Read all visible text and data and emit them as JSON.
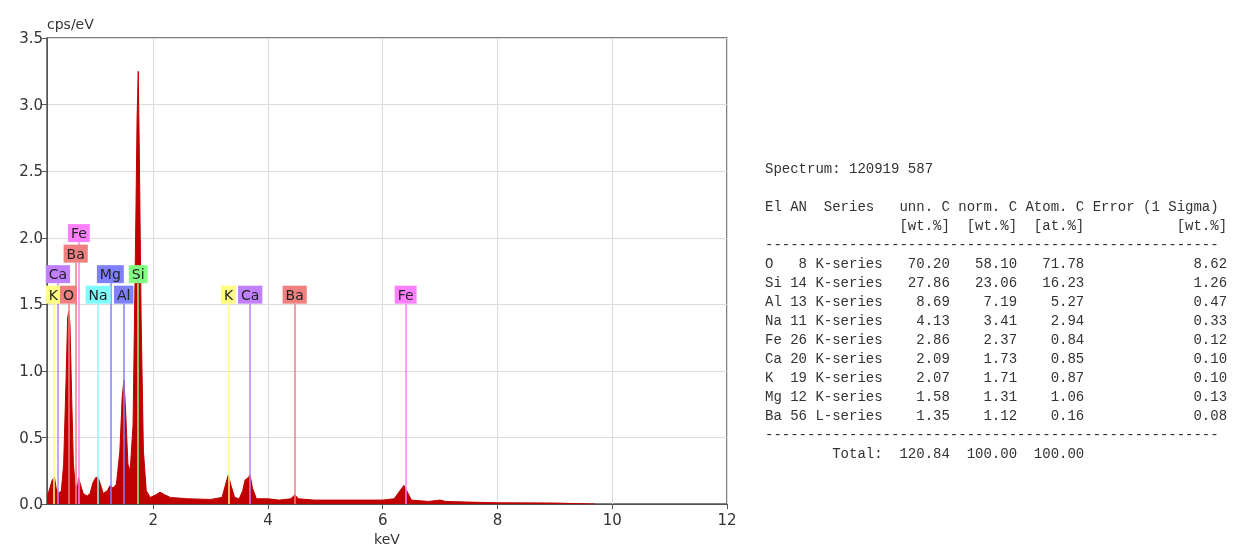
{
  "chart_data": [
    {
      "type": "area",
      "xlabel": "keV",
      "ylabel": "cps/eV",
      "xlim": [
        0.15,
        12
      ],
      "xticks": [
        2,
        4,
        6,
        8,
        10,
        12
      ],
      "ylim": [
        0,
        3.5
      ],
      "yticks": [
        {
          "value": 0,
          "label": "0.0"
        },
        {
          "value": 0.5,
          "label": "0.5"
        },
        {
          "value": 1,
          "label": "1.0"
        },
        {
          "value": 1.5,
          "label": "1.5"
        },
        {
          "value": 2,
          "label": "2.0"
        },
        {
          "value": 2.5,
          "label": "2.5"
        },
        {
          "value": 3,
          "label": "3.0"
        },
        {
          "value": 3.5,
          "label": "3.5"
        }
      ],
      "grid": true,
      "marker": "none",
      "series": [
        {
          "color": "#c00000",
          "x": [
            0.15,
            0.2,
            0.24,
            0.28,
            0.31,
            0.35,
            0.4,
            0.44,
            0.48,
            0.51,
            0.53,
            0.55,
            0.58,
            0.61,
            0.64,
            0.68,
            0.7,
            0.73,
            0.78,
            0.85,
            0.9,
            0.95,
            1.0,
            1.04,
            1.08,
            1.13,
            1.2,
            1.25,
            1.3,
            1.36,
            1.42,
            1.46,
            1.49,
            1.52,
            1.56,
            1.6,
            1.65,
            1.7,
            1.72,
            1.74,
            1.76,
            1.79,
            1.83,
            1.88,
            1.95,
            2.05,
            2.12,
            2.2,
            2.3,
            2.6,
            3.0,
            3.2,
            3.27,
            3.31,
            3.35,
            3.42,
            3.5,
            3.56,
            3.6,
            3.66,
            3.69,
            3.73,
            3.8,
            4.0,
            4.2,
            4.4,
            4.47,
            4.53,
            4.8,
            5.0,
            5.5,
            6.0,
            6.2,
            6.3,
            6.37,
            6.42,
            6.5,
            6.8,
            7.0,
            7.1,
            7.5,
            8.0,
            9.0,
            9.7
          ],
          "values": [
            0.05,
            0.12,
            0.18,
            0.2,
            0.12,
            0.08,
            0.1,
            0.3,
            0.9,
            1.4,
            1.45,
            1.35,
            0.8,
            0.3,
            0.15,
            0.12,
            0.2,
            0.15,
            0.08,
            0.06,
            0.08,
            0.16,
            0.2,
            0.2,
            0.15,
            0.08,
            0.1,
            0.14,
            0.12,
            0.15,
            0.4,
            0.8,
            0.93,
            0.7,
            0.3,
            0.25,
            0.6,
            2.2,
            2.9,
            3.25,
            2.6,
            1.4,
            0.4,
            0.1,
            0.05,
            0.07,
            0.09,
            0.07,
            0.05,
            0.04,
            0.035,
            0.05,
            0.16,
            0.22,
            0.15,
            0.05,
            0.04,
            0.1,
            0.18,
            0.2,
            0.22,
            0.12,
            0.04,
            0.04,
            0.03,
            0.04,
            0.07,
            0.04,
            0.03,
            0.03,
            0.03,
            0.03,
            0.04,
            0.1,
            0.14,
            0.1,
            0.03,
            0.02,
            0.03,
            0.02,
            0.015,
            0.01,
            0.008,
            0
          ]
        }
      ],
      "ref_lines": [
        {
          "axis": "x",
          "value": 0.26,
          "label": "K",
          "color": "#ffff80"
        },
        {
          "axis": "x",
          "value": 0.34,
          "label": "Ca",
          "color": "#c080ff"
        },
        {
          "axis": "x",
          "value": 0.525,
          "label": "O",
          "color": "#f08080"
        },
        {
          "axis": "x",
          "value": 0.65,
          "label": "Ba",
          "color": "#f08080"
        },
        {
          "axis": "x",
          "value": 0.705,
          "label": "Fe",
          "color": "#ff80ff"
        },
        {
          "axis": "x",
          "value": 1.041,
          "label": "Na",
          "color": "#80ffff"
        },
        {
          "axis": "x",
          "value": 1.254,
          "label": "Mg",
          "color": "#8080ff"
        },
        {
          "axis": "x",
          "value": 1.487,
          "label": "Al",
          "color": "#8080ff"
        },
        {
          "axis": "x",
          "value": 1.74,
          "label": "Si",
          "color": "#80ff80"
        },
        {
          "axis": "x",
          "value": 3.313,
          "label": "K",
          "color": "#ffff80"
        },
        {
          "axis": "x",
          "value": 3.691,
          "label": "Ca",
          "color": "#c080ff"
        },
        {
          "axis": "x",
          "value": 4.466,
          "label": "Ba",
          "color": "#f08080"
        },
        {
          "axis": "x",
          "value": 6.4,
          "label": "Fe",
          "color": "#ff80ff"
        }
      ]
    },
    {
      "type": "other",
      "title": "Spectrum: 120919 587",
      "annotations": [
        "El AN  Series   unn. C norm. C Atom. C Error (1 Sigma)",
        "                [wt.%]  [wt.%]  [at.%]           [wt.%]",
        "------------------------------------------------------",
        "O   8 K-series   70.20   58.10   71.78             8.62",
        "Si 14 K-series   27.86   23.06   16.23             1.26",
        "Al 13 K-series    8.69    7.19    5.27             0.47",
        "Na 11 K-series    4.13    3.41    2.94             0.33",
        "Fe 26 K-series    2.86    2.37    0.84             0.12",
        "Ca 20 K-series    2.09    1.73    0.85             0.10",
        "K  19 K-series    2.07    1.71    0.87             0.10",
        "Mg 12 K-series    1.58    1.31    1.06             0.13",
        "Ba 56 L-series    1.35    1.12    0.16             0.08",
        "------------------------------------------------------",
        "        Total:  120.84  100.00  100.00"
      ]
    }
  ]
}
